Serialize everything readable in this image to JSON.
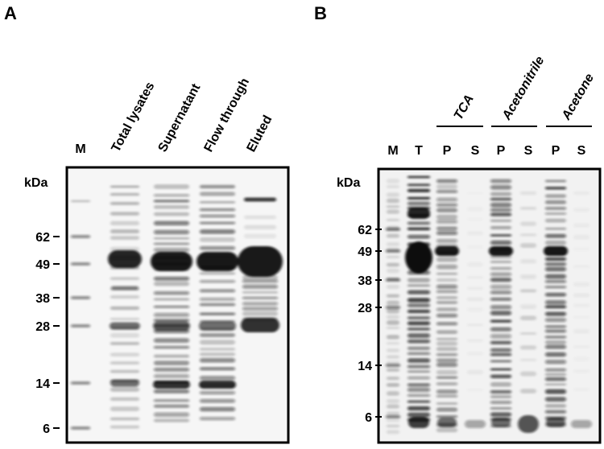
{
  "panels": [
    {
      "label": "A",
      "lanes": [
        "M",
        "Total lysates",
        "Supernatant",
        "Flow through",
        "Eluted"
      ],
      "unit": "kDa",
      "markers": [
        62,
        49,
        38,
        28,
        14,
        6
      ]
    },
    {
      "label": "B",
      "lanes": [
        "M",
        "T",
        "P",
        "S",
        "P",
        "S",
        "P",
        "S"
      ],
      "groups": [
        "TCA",
        "Acetonitrile",
        "Acetone"
      ],
      "unit": "kDa",
      "markers": [
        62,
        49,
        38,
        28,
        14,
        6
      ]
    }
  ]
}
